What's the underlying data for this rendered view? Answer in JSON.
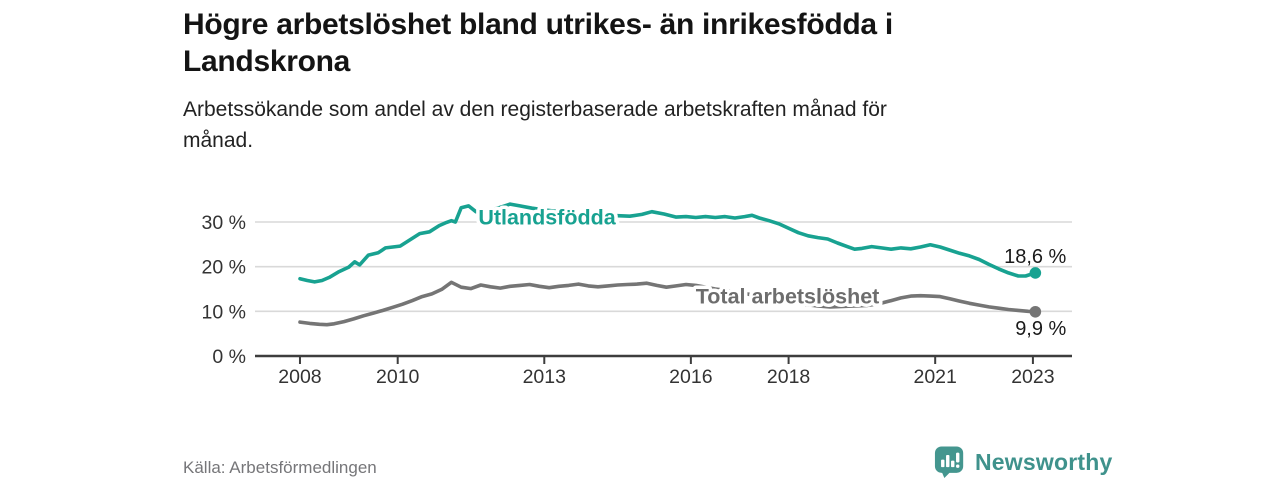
{
  "header": {
    "title": "Högre arbetslöshet bland utrikes- än inrikesfödda i Landskrona",
    "title_lines": [
      "Högre arbetslöshet bland utrikes- än inrikesfödda i",
      "Landskrona"
    ],
    "subtitle": "Arbetssökande som andel av den registerbaserade arbetskraften månad för månad.",
    "subtitle_lines": [
      "Arbetssökande som andel av den registerbaserade arbetskraften månad för",
      "månad."
    ]
  },
  "footer": {
    "source": "Källa: Arbetsförmedlingen",
    "brand_name": "Newsworthy",
    "brand_icon": "bar-chart-speech-bubble-icon",
    "brand_color": "#3f928c"
  },
  "colors": {
    "accent_teal": "#18a291",
    "line_gray": "#757575",
    "label_gray": "#6d6d6d",
    "gridline": "#d9d9d9",
    "axis": "#3d3d3d",
    "tick_text": "#333333",
    "value_text": "#1a1a1a",
    "background": "#ffffff"
  },
  "chart_data": {
    "type": "line",
    "title": "Högre arbetslöshet bland utrikes- än inrikesfödda i Landskrona",
    "xlabel": "",
    "ylabel": "Arbetssökande som andel av den registerbaserade arbetskraften",
    "grid": "horizontal",
    "legend_position": "inline-labels",
    "x_axis": {
      "range": [
        2007.1,
        2023.8
      ],
      "ticks": [
        {
          "v": 2008,
          "label": "2008"
        },
        {
          "v": 2010,
          "label": "2010"
        },
        {
          "v": 2013,
          "label": "2013"
        },
        {
          "v": 2016,
          "label": "2016"
        },
        {
          "v": 2018,
          "label": "2018"
        },
        {
          "v": 2021,
          "label": "2021"
        },
        {
          "v": 2023,
          "label": "2023"
        }
      ]
    },
    "y_axis": {
      "range": [
        0,
        35.6
      ],
      "unit": "%",
      "ticks": [
        {
          "v": 0,
          "label": "0 %"
        },
        {
          "v": 10,
          "label": "10 %"
        },
        {
          "v": 20,
          "label": "20 %"
        },
        {
          "v": 30,
          "label": "30 %"
        }
      ]
    },
    "series": [
      {
        "name": "Utlandsfödda",
        "color": "#18a291",
        "label_color": "#18a291",
        "label_anchor": {
          "x": 2011.65,
          "y": 31.1
        },
        "end_value": 18.6,
        "end_label": "18,6 %",
        "end_label_position": "above",
        "points": [
          [
            2008.0,
            17.3
          ],
          [
            2008.15,
            16.9
          ],
          [
            2008.3,
            16.6
          ],
          [
            2008.45,
            16.9
          ],
          [
            2008.6,
            17.6
          ],
          [
            2008.8,
            18.9
          ],
          [
            2009.0,
            19.9
          ],
          [
            2009.12,
            21.1
          ],
          [
            2009.22,
            20.4
          ],
          [
            2009.4,
            22.6
          ],
          [
            2009.6,
            23.1
          ],
          [
            2009.75,
            24.2
          ],
          [
            2009.9,
            24.4
          ],
          [
            2010.05,
            24.6
          ],
          [
            2010.25,
            26.0
          ],
          [
            2010.45,
            27.4
          ],
          [
            2010.65,
            27.8
          ],
          [
            2010.85,
            29.2
          ],
          [
            2011.0,
            29.9
          ],
          [
            2011.1,
            30.3
          ],
          [
            2011.18,
            30.0
          ],
          [
            2011.3,
            33.2
          ],
          [
            2011.45,
            33.6
          ],
          [
            2011.6,
            32.3
          ],
          [
            2011.75,
            32.0
          ],
          [
            2011.9,
            32.6
          ],
          [
            2012.1,
            33.3
          ],
          [
            2012.3,
            34.0
          ],
          [
            2012.5,
            33.6
          ],
          [
            2012.75,
            33.1
          ],
          [
            2013.0,
            32.7
          ],
          [
            2013.3,
            32.3
          ],
          [
            2013.6,
            32.0
          ],
          [
            2013.9,
            31.8
          ],
          [
            2014.2,
            31.6
          ],
          [
            2014.5,
            31.4
          ],
          [
            2014.75,
            31.3
          ],
          [
            2015.0,
            31.7
          ],
          [
            2015.2,
            32.3
          ],
          [
            2015.45,
            31.8
          ],
          [
            2015.7,
            31.1
          ],
          [
            2015.9,
            31.2
          ],
          [
            2016.1,
            31.0
          ],
          [
            2016.3,
            31.2
          ],
          [
            2016.5,
            31.0
          ],
          [
            2016.7,
            31.2
          ],
          [
            2016.9,
            30.9
          ],
          [
            2017.1,
            31.2
          ],
          [
            2017.25,
            31.5
          ],
          [
            2017.4,
            30.9
          ],
          [
            2017.6,
            30.3
          ],
          [
            2017.8,
            29.6
          ],
          [
            2018.0,
            28.6
          ],
          [
            2018.2,
            27.6
          ],
          [
            2018.4,
            26.9
          ],
          [
            2018.6,
            26.5
          ],
          [
            2018.8,
            26.2
          ],
          [
            2019.0,
            25.3
          ],
          [
            2019.2,
            24.5
          ],
          [
            2019.35,
            23.9
          ],
          [
            2019.5,
            24.1
          ],
          [
            2019.7,
            24.5
          ],
          [
            2019.9,
            24.2
          ],
          [
            2020.1,
            23.9
          ],
          [
            2020.3,
            24.2
          ],
          [
            2020.5,
            24.0
          ],
          [
            2020.7,
            24.4
          ],
          [
            2020.9,
            24.9
          ],
          [
            2021.1,
            24.4
          ],
          [
            2021.3,
            23.7
          ],
          [
            2021.5,
            23.0
          ],
          [
            2021.7,
            22.4
          ],
          [
            2021.9,
            21.6
          ],
          [
            2022.1,
            20.5
          ],
          [
            2022.3,
            19.5
          ],
          [
            2022.5,
            18.6
          ],
          [
            2022.7,
            17.9
          ],
          [
            2022.85,
            17.9
          ],
          [
            2023.05,
            18.6
          ]
        ]
      },
      {
        "name": "Total arbetslöshet",
        "color": "#757575",
        "label_color": "#6d6d6d",
        "label_anchor": {
          "x": 2016.1,
          "y": 13.4
        },
        "end_value": 9.9,
        "end_label": "9,9 %",
        "end_label_position": "below",
        "points": [
          [
            2008.0,
            7.6
          ],
          [
            2008.2,
            7.3
          ],
          [
            2008.4,
            7.1
          ],
          [
            2008.55,
            7.0
          ],
          [
            2008.7,
            7.2
          ],
          [
            2008.9,
            7.7
          ],
          [
            2009.1,
            8.3
          ],
          [
            2009.3,
            9.0
          ],
          [
            2009.5,
            9.6
          ],
          [
            2009.7,
            10.2
          ],
          [
            2009.9,
            10.9
          ],
          [
            2010.1,
            11.6
          ],
          [
            2010.3,
            12.4
          ],
          [
            2010.5,
            13.3
          ],
          [
            2010.7,
            13.9
          ],
          [
            2010.9,
            14.9
          ],
          [
            2011.1,
            16.5
          ],
          [
            2011.3,
            15.4
          ],
          [
            2011.5,
            15.1
          ],
          [
            2011.7,
            15.9
          ],
          [
            2011.9,
            15.5
          ],
          [
            2012.1,
            15.2
          ],
          [
            2012.3,
            15.6
          ],
          [
            2012.5,
            15.8
          ],
          [
            2012.7,
            16.0
          ],
          [
            2012.9,
            15.6
          ],
          [
            2013.1,
            15.3
          ],
          [
            2013.3,
            15.6
          ],
          [
            2013.5,
            15.8
          ],
          [
            2013.7,
            16.1
          ],
          [
            2013.9,
            15.7
          ],
          [
            2014.1,
            15.5
          ],
          [
            2014.3,
            15.7
          ],
          [
            2014.5,
            15.9
          ],
          [
            2014.7,
            16.0
          ],
          [
            2014.9,
            16.1
          ],
          [
            2015.1,
            16.3
          ],
          [
            2015.3,
            15.8
          ],
          [
            2015.5,
            15.4
          ],
          [
            2015.7,
            15.7
          ],
          [
            2015.9,
            16.0
          ],
          [
            2016.1,
            15.8
          ],
          [
            2016.3,
            15.4
          ],
          [
            2016.5,
            15.0
          ],
          [
            2016.7,
            14.7
          ],
          [
            2016.9,
            14.4
          ],
          [
            2017.1,
            14.0
          ],
          [
            2017.35,
            13.5
          ],
          [
            2017.6,
            13.0
          ],
          [
            2017.85,
            12.5
          ],
          [
            2018.1,
            12.0
          ],
          [
            2018.35,
            11.5
          ],
          [
            2018.6,
            11.2
          ],
          [
            2018.85,
            11.0
          ],
          [
            2019.1,
            11.1
          ],
          [
            2019.35,
            11.2
          ],
          [
            2019.6,
            11.3
          ],
          [
            2019.85,
            11.7
          ],
          [
            2020.1,
            12.4
          ],
          [
            2020.3,
            13.0
          ],
          [
            2020.5,
            13.4
          ],
          [
            2020.7,
            13.5
          ],
          [
            2020.9,
            13.4
          ],
          [
            2021.1,
            13.3
          ],
          [
            2021.3,
            12.8
          ],
          [
            2021.5,
            12.3
          ],
          [
            2021.7,
            11.8
          ],
          [
            2021.9,
            11.4
          ],
          [
            2022.1,
            11.0
          ],
          [
            2022.3,
            10.7
          ],
          [
            2022.5,
            10.4
          ],
          [
            2022.7,
            10.2
          ],
          [
            2022.9,
            10.0
          ],
          [
            2023.05,
            9.9
          ]
        ]
      }
    ]
  }
}
